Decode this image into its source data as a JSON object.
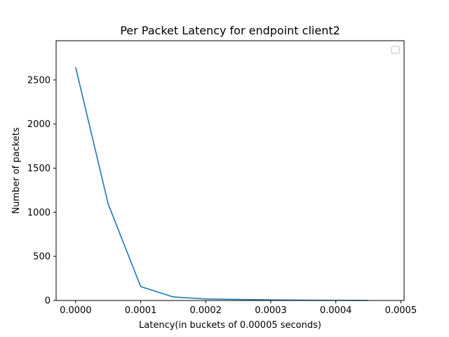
{
  "chart_data": {
    "type": "line",
    "title": "Per Packet Latency for endpoint client2",
    "xlabel": "Latency(in buckets of 0.00005 seconds)",
    "ylabel": "Number of packets",
    "x": [
      0.0,
      5e-05,
      0.0001,
      0.00015,
      0.0002,
      0.00025,
      0.0003,
      0.00035,
      0.0004,
      0.00045
    ],
    "series": [
      {
        "values": [
          2645,
          1095,
          158,
          40,
          18,
          12,
          7,
          4,
          2,
          1
        ],
        "color": "#1f77b4"
      }
    ],
    "xlim": [
      -3e-05,
      0.000505
    ],
    "ylim": [
      0,
      2945
    ],
    "xticks": [
      0.0,
      0.0001,
      0.0002,
      0.0003,
      0.0004,
      0.0005
    ],
    "xtick_labels": [
      "0.0000",
      "0.0001",
      "0.0002",
      "0.0003",
      "0.0004",
      "0.0005"
    ],
    "yticks": [
      0,
      500,
      1000,
      1500,
      2000,
      2500
    ],
    "ytick_labels": [
      "0",
      "500",
      "1000",
      "1500",
      "2000",
      "2500"
    ],
    "legend": "top-right",
    "grid": false
  }
}
